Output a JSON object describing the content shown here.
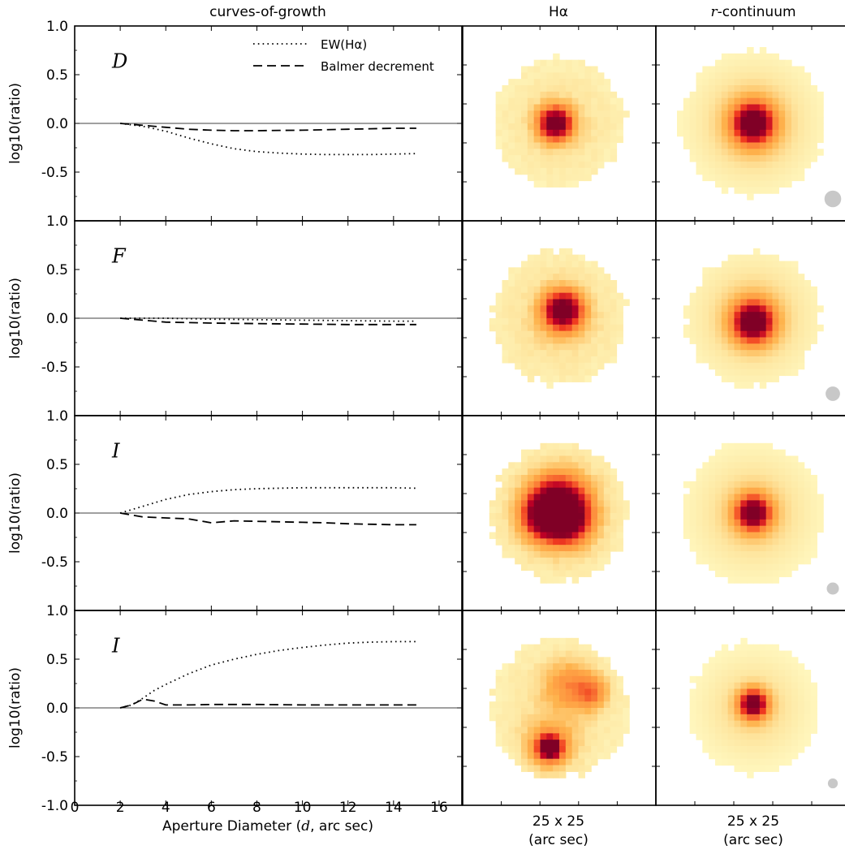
{
  "column_titles": {
    "curves": "curves-of-growth",
    "halpha": "Hα",
    "rcont_prefix": "r",
    "rcont_suffix": "-continuum"
  },
  "stamp_caption": {
    "line1": "25 x 25",
    "line2": "(arc sec)"
  },
  "legend": {
    "ew": "EW(Hα)",
    "balmer": "Balmer decrement"
  },
  "colors": {
    "psf_disk": "#c8c8c8",
    "stamp_low": "#ffffcc",
    "stamp_mid": "#fd8d3c",
    "stamp_high": "#a50026"
  },
  "chart_data": {
    "type": "line",
    "xlabel_prefix": "Aperture Diameter (",
    "xlabel_var": "d",
    "xlabel_suffix": ", arc sec)",
    "ylabel": "log10(ratio)",
    "xlim": [
      0,
      17
    ],
    "x_ticks": [
      "0",
      "2",
      "4",
      "6",
      "8",
      "10",
      "12",
      "14",
      "16"
    ],
    "panels": [
      {
        "label": "D",
        "ylim": [
          -1.0,
          1.0
        ],
        "y_ticks": [
          "1.0",
          "0.5",
          "0.0",
          "-0.5"
        ],
        "series": [
          {
            "key": "ew",
            "style": "dotted",
            "points": [
              [
                2,
                0
              ],
              [
                3,
                -0.03
              ],
              [
                4,
                -0.08
              ],
              [
                5,
                -0.15
              ],
              [
                6,
                -0.21
              ],
              [
                7,
                -0.26
              ],
              [
                8,
                -0.29
              ],
              [
                9,
                -0.305
              ],
              [
                10,
                -0.315
              ],
              [
                11,
                -0.32
              ],
              [
                12,
                -0.32
              ],
              [
                13,
                -0.32
              ],
              [
                14,
                -0.315
              ],
              [
                15,
                -0.31
              ]
            ]
          },
          {
            "key": "balmer",
            "style": "dashed",
            "points": [
              [
                2,
                0
              ],
              [
                3,
                -0.02
              ],
              [
                4,
                -0.04
              ],
              [
                5,
                -0.06
              ],
              [
                6,
                -0.07
              ],
              [
                7,
                -0.075
              ],
              [
                8,
                -0.075
              ],
              [
                9,
                -0.072
              ],
              [
                10,
                -0.07
              ],
              [
                11,
                -0.065
              ],
              [
                12,
                -0.06
              ],
              [
                13,
                -0.055
              ],
              [
                14,
                -0.05
              ],
              [
                15,
                -0.05
              ]
            ]
          }
        ],
        "psf_diameter_arcsec": 2.2
      },
      {
        "label": "F",
        "ylim": [
          -1.0,
          1.0
        ],
        "y_ticks": [
          "1.0",
          "0.5",
          "0.0",
          "-0.5"
        ],
        "series": [
          {
            "key": "ew",
            "style": "dotted",
            "points": [
              [
                2,
                0
              ],
              [
                4,
                0.0
              ],
              [
                6,
                -0.01
              ],
              [
                8,
                -0.015
              ],
              [
                10,
                -0.02
              ],
              [
                12,
                -0.025
              ],
              [
                14,
                -0.03
              ],
              [
                15,
                -0.03
              ]
            ]
          },
          {
            "key": "balmer",
            "style": "dashed",
            "points": [
              [
                2,
                0
              ],
              [
                3,
                -0.02
              ],
              [
                4,
                -0.04
              ],
              [
                6,
                -0.05
              ],
              [
                8,
                -0.055
              ],
              [
                10,
                -0.06
              ],
              [
                12,
                -0.065
              ],
              [
                14,
                -0.065
              ],
              [
                15,
                -0.065
              ]
            ]
          }
        ],
        "psf_diameter_arcsec": 1.9
      },
      {
        "label": "I",
        "ylim": [
          -1.0,
          1.0
        ],
        "y_ticks": [
          "1.0",
          "0.5",
          "0.0",
          "-0.5"
        ],
        "series": [
          {
            "key": "ew",
            "style": "dotted",
            "points": [
              [
                2,
                0
              ],
              [
                3,
                0.07
              ],
              [
                4,
                0.14
              ],
              [
                5,
                0.19
              ],
              [
                6,
                0.22
              ],
              [
                7,
                0.24
              ],
              [
                8,
                0.25
              ],
              [
                9,
                0.255
              ],
              [
                10,
                0.26
              ],
              [
                11,
                0.26
              ],
              [
                12,
                0.26
              ],
              [
                13,
                0.26
              ],
              [
                14,
                0.26
              ],
              [
                15,
                0.255
              ]
            ]
          },
          {
            "key": "balmer",
            "style": "dashed",
            "points": [
              [
                2,
                0
              ],
              [
                3,
                -0.04
              ],
              [
                4,
                -0.05
              ],
              [
                5,
                -0.06
              ],
              [
                6,
                -0.1
              ],
              [
                7,
                -0.08
              ],
              [
                8,
                -0.085
              ],
              [
                9,
                -0.09
              ],
              [
                10,
                -0.095
              ],
              [
                11,
                -0.1
              ],
              [
                12,
                -0.11
              ],
              [
                13,
                -0.115
              ],
              [
                14,
                -0.12
              ],
              [
                15,
                -0.12
              ]
            ]
          }
        ],
        "psf_diameter_arcsec": 1.6
      },
      {
        "label": "I",
        "ylim": [
          -1.0,
          1.0
        ],
        "y_ticks": [
          "1.0",
          "0.5",
          "0.0",
          "-0.5",
          "-1.0"
        ],
        "series": [
          {
            "key": "ew",
            "style": "dotted",
            "points": [
              [
                2,
                0
              ],
              [
                2.5,
                0.03
              ],
              [
                3,
                0.1
              ],
              [
                3.5,
                0.18
              ],
              [
                4,
                0.24
              ],
              [
                5,
                0.35
              ],
              [
                6,
                0.44
              ],
              [
                7,
                0.5
              ],
              [
                8,
                0.55
              ],
              [
                9,
                0.59
              ],
              [
                10,
                0.62
              ],
              [
                11,
                0.645
              ],
              [
                12,
                0.665
              ],
              [
                13,
                0.675
              ],
              [
                14,
                0.68
              ],
              [
                15,
                0.68
              ]
            ]
          },
          {
            "key": "balmer",
            "style": "dashed",
            "points": [
              [
                2,
                0
              ],
              [
                2.5,
                0.03
              ],
              [
                3,
                0.09
              ],
              [
                3.5,
                0.07
              ],
              [
                4,
                0.03
              ],
              [
                5,
                0.03
              ],
              [
                6,
                0.035
              ],
              [
                8,
                0.035
              ],
              [
                10,
                0.03
              ],
              [
                12,
                0.03
              ],
              [
                15,
                0.03
              ]
            ]
          }
        ],
        "psf_diameter_arcsec": 1.3
      }
    ]
  }
}
